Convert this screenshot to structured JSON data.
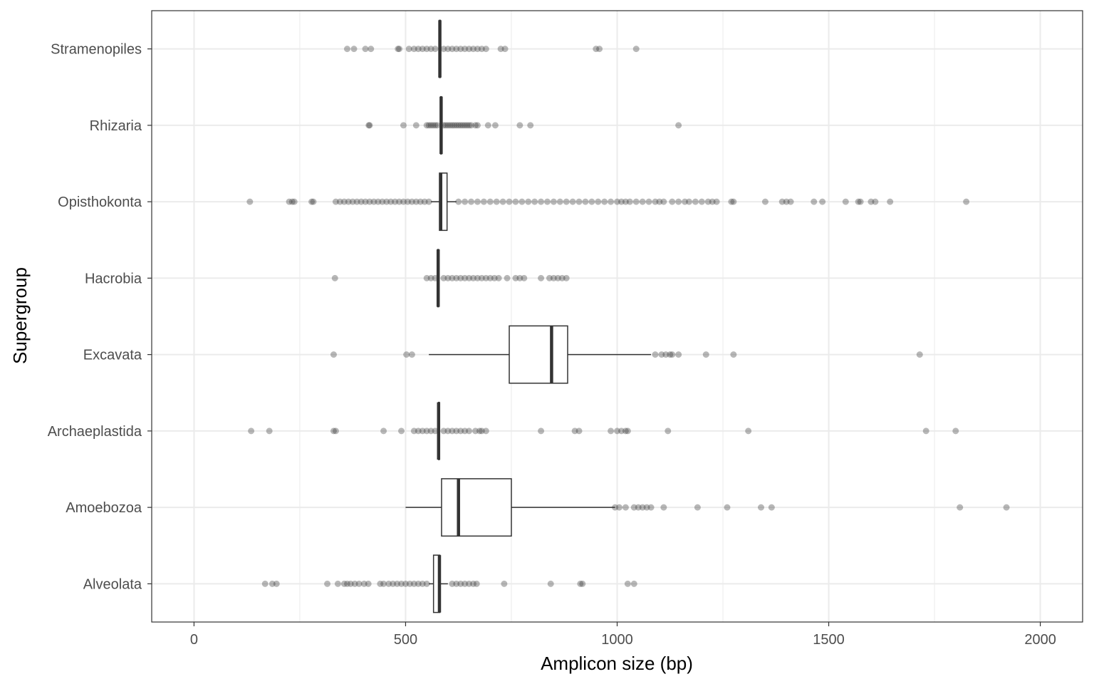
{
  "chart_data": {
    "type": "boxplot",
    "orientation": "horizontal",
    "xlabel": "Amplicon size (bp)",
    "ylabel": "Supergroup",
    "xlim": [
      -100,
      2100
    ],
    "xticks": [
      0,
      500,
      1000,
      1500,
      2000
    ],
    "xtick_labels": [
      "0",
      "500",
      "1000",
      "1500",
      "2000"
    ],
    "grid": true,
    "theme": "bw",
    "colors": {
      "box_stroke": "#333333",
      "outlier": "#333333",
      "grid": "#ebebeb",
      "panel_border": "#333333"
    },
    "groups": [
      {
        "name": "Alveolata",
        "q1": 566,
        "median": 580,
        "q3": 581,
        "whisker_low": 555,
        "whisker_high": 600,
        "outliers": [
          168,
          185,
          195,
          315,
          340,
          355,
          362,
          370,
          380,
          390,
          402,
          412,
          440,
          448,
          460,
          470,
          480,
          490,
          500,
          510,
          520,
          530,
          540,
          550,
          610,
          620,
          630,
          640,
          650,
          660,
          668,
          733,
          843,
          913,
          918,
          1025,
          1040
        ]
      },
      {
        "name": "Amoebozoa",
        "q1": 585,
        "median": 625,
        "q3": 750,
        "whisker_low": 500,
        "whisker_high": 995,
        "outliers": [
          995,
          1005,
          1020,
          1040,
          1050,
          1060,
          1070,
          1080,
          1110,
          1190,
          1260,
          1340,
          1365,
          1810,
          1920
        ]
      },
      {
        "name": "Archaeplastida",
        "q1": 578,
        "median": 578,
        "q3": 579,
        "whisker_low": 577,
        "whisker_high": 580,
        "outliers": [
          135,
          178,
          330,
          335,
          448,
          490,
          520,
          530,
          540,
          550,
          560,
          570,
          590,
          600,
          610,
          620,
          630,
          640,
          650,
          665,
          675,
          680,
          690,
          820,
          900,
          910,
          985,
          1000,
          1010,
          1020,
          1025,
          1120,
          1310,
          1730,
          1800
        ]
      },
      {
        "name": "Excavata",
        "q1": 745,
        "median": 845,
        "q3": 883,
        "whisker_low": 555,
        "whisker_high": 1080,
        "outliers": [
          330,
          502,
          515,
          1090,
          1105,
          1115,
          1125,
          1130,
          1145,
          1210,
          1275,
          1715
        ]
      },
      {
        "name": "Hacrobia",
        "q1": 576,
        "median": 577,
        "q3": 578,
        "whisker_low": 575,
        "whisker_high": 579,
        "outliers": [
          333,
          550,
          560,
          570,
          590,
          600,
          610,
          620,
          630,
          640,
          650,
          660,
          670,
          680,
          690,
          700,
          710,
          720,
          740,
          760,
          770,
          780,
          820,
          840,
          850,
          860,
          870,
          880
        ]
      },
      {
        "name": "Opisthokonta",
        "q1": 580,
        "median": 583,
        "q3": 598,
        "whisker_low": 560,
        "whisker_high": 620,
        "outliers": [
          132,
          225,
          232,
          237,
          278,
          282,
          335,
          345,
          355,
          365,
          375,
          385,
          395,
          405,
          415,
          425,
          435,
          445,
          455,
          465,
          475,
          485,
          495,
          505,
          515,
          525,
          535,
          545,
          555,
          625,
          640,
          655,
          670,
          685,
          700,
          715,
          730,
          745,
          760,
          775,
          790,
          805,
          820,
          835,
          850,
          865,
          880,
          895,
          910,
          925,
          940,
          955,
          970,
          985,
          1000,
          1010,
          1020,
          1030,
          1045,
          1060,
          1075,
          1090,
          1100,
          1110,
          1130,
          1145,
          1160,
          1170,
          1185,
          1200,
          1215,
          1225,
          1235,
          1270,
          1275,
          1350,
          1390,
          1400,
          1410,
          1465,
          1485,
          1540,
          1570,
          1575,
          1600,
          1610,
          1645,
          1825
        ]
      },
      {
        "name": "Rhizaria",
        "q1": 583,
        "median": 584,
        "q3": 585,
        "whisker_low": 582,
        "whisker_high": 586,
        "outliers": [
          413,
          415,
          495,
          525,
          550,
          555,
          560,
          565,
          570,
          575,
          590,
          595,
          600,
          605,
          610,
          615,
          620,
          625,
          630,
          635,
          640,
          645,
          650,
          655,
          665,
          670,
          695,
          712,
          770,
          795,
          1145
        ]
      },
      {
        "name": "Stramenopiles",
        "q1": 580,
        "median": 581,
        "q3": 582,
        "whisker_low": 579,
        "whisker_high": 583,
        "outliers": [
          362,
          378,
          405,
          418,
          482,
          485,
          508,
          520,
          530,
          540,
          550,
          560,
          570,
          590,
          600,
          610,
          620,
          630,
          640,
          650,
          660,
          670,
          680,
          690,
          725,
          735,
          950,
          958,
          1045
        ]
      }
    ]
  }
}
